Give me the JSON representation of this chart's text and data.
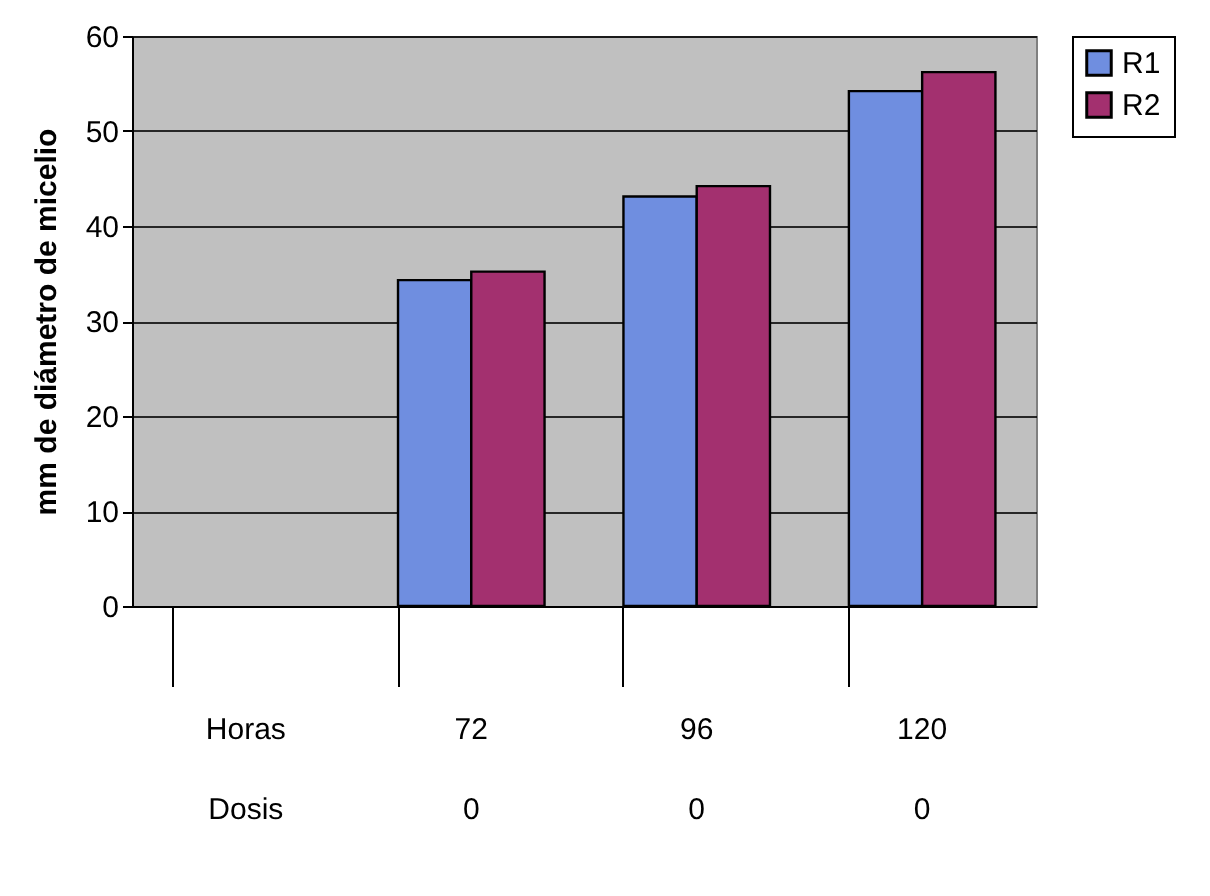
{
  "chart_data": {
    "type": "bar",
    "ylabel": "mm de diámetro de micelio",
    "categories": [
      "Horas\nDosis",
      "72\n0",
      "96\n0",
      "120\n0"
    ],
    "series": [
      {
        "name": "R1",
        "color": "#6f8ee0",
        "values": [
          null,
          34.3,
          43.1,
          54.2
        ]
      },
      {
        "name": "R2",
        "color": "#a3306f",
        "values": [
          null,
          35.2,
          44.2,
          56.2
        ]
      }
    ],
    "ylim": [
      0,
      60
    ],
    "yticks": [
      0,
      10,
      20,
      30,
      40,
      50,
      60
    ],
    "grid": "y",
    "legend": "right"
  }
}
